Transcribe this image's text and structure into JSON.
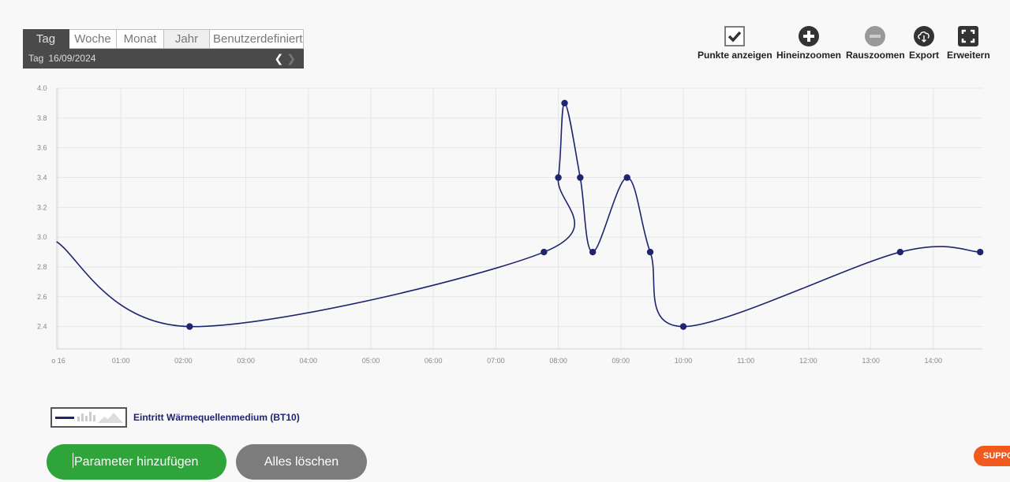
{
  "period": {
    "tabs": [
      {
        "label": "Tag"
      },
      {
        "label": "Woche"
      },
      {
        "label": "Monat"
      },
      {
        "label": "Jahr"
      },
      {
        "label": "Benutzerdefiniert"
      }
    ],
    "range_label": "Tag",
    "date": "16/09/2024",
    "prev_icon": "chevron-left-icon",
    "next_icon": "chevron-right-icon"
  },
  "toolbar": {
    "show_points": {
      "label": "Punkte anzeigen",
      "icon": "checkbox-checked-icon"
    },
    "zoom_in": {
      "label": "Hineinzoomen",
      "icon": "plus-circle-icon"
    },
    "zoom_out": {
      "label": "Rauszoomen",
      "icon": "minus-circle-icon"
    },
    "export": {
      "label": "Export",
      "icon": "cloud-download-icon"
    },
    "expand": {
      "label": "Erweitern",
      "icon": "fullscreen-icon"
    }
  },
  "chart_data": {
    "type": "line",
    "x_tick_labels": [
      "o 16",
      "01:00",
      "02:00",
      "03:00",
      "04:00",
      "05:00",
      "06:00",
      "07:00",
      "08:00",
      "09:00",
      "10:00",
      "11:00",
      "12:00",
      "13:00",
      "14:00"
    ],
    "y_tick_labels": [
      "2.4",
      "2.6",
      "2.8",
      "3.0",
      "3.2",
      "3.4",
      "3.6",
      "3.8",
      "4.0"
    ],
    "ylim": [
      2.25,
      4.0
    ],
    "xlim_hours": [
      -0.03,
      14.8
    ],
    "grid": true,
    "series": [
      {
        "name": "Eintritt Wärmequellenmedium (BT10)",
        "color": "#1e2470",
        "points": [
          {
            "x": 2.1,
            "y": 2.4
          },
          {
            "x": 7.77,
            "y": 2.9
          },
          {
            "x": 8.0,
            "y": 3.4
          },
          {
            "x": 8.1,
            "y": 3.9
          },
          {
            "x": 8.35,
            "y": 3.4
          },
          {
            "x": 8.55,
            "y": 2.9
          },
          {
            "x": 9.1,
            "y": 3.4
          },
          {
            "x": 9.47,
            "y": 2.9
          },
          {
            "x": 10.0,
            "y": 2.4
          },
          {
            "x": 13.47,
            "y": 2.9
          },
          {
            "x": 14.75,
            "y": 2.9
          }
        ],
        "start_value": 2.97
      }
    ]
  },
  "legend": {
    "label": "Eintritt Wärmequellenmedium (BT10)"
  },
  "buttons": {
    "add_parameter": "Parameter hinzufügen",
    "clear_all": "Alles löschen"
  },
  "support": {
    "label": "SUPPORT"
  },
  "colors": {
    "accent_green": "#2ea43a",
    "series_navy": "#1e2470",
    "support_orange": "#f05a1e"
  }
}
